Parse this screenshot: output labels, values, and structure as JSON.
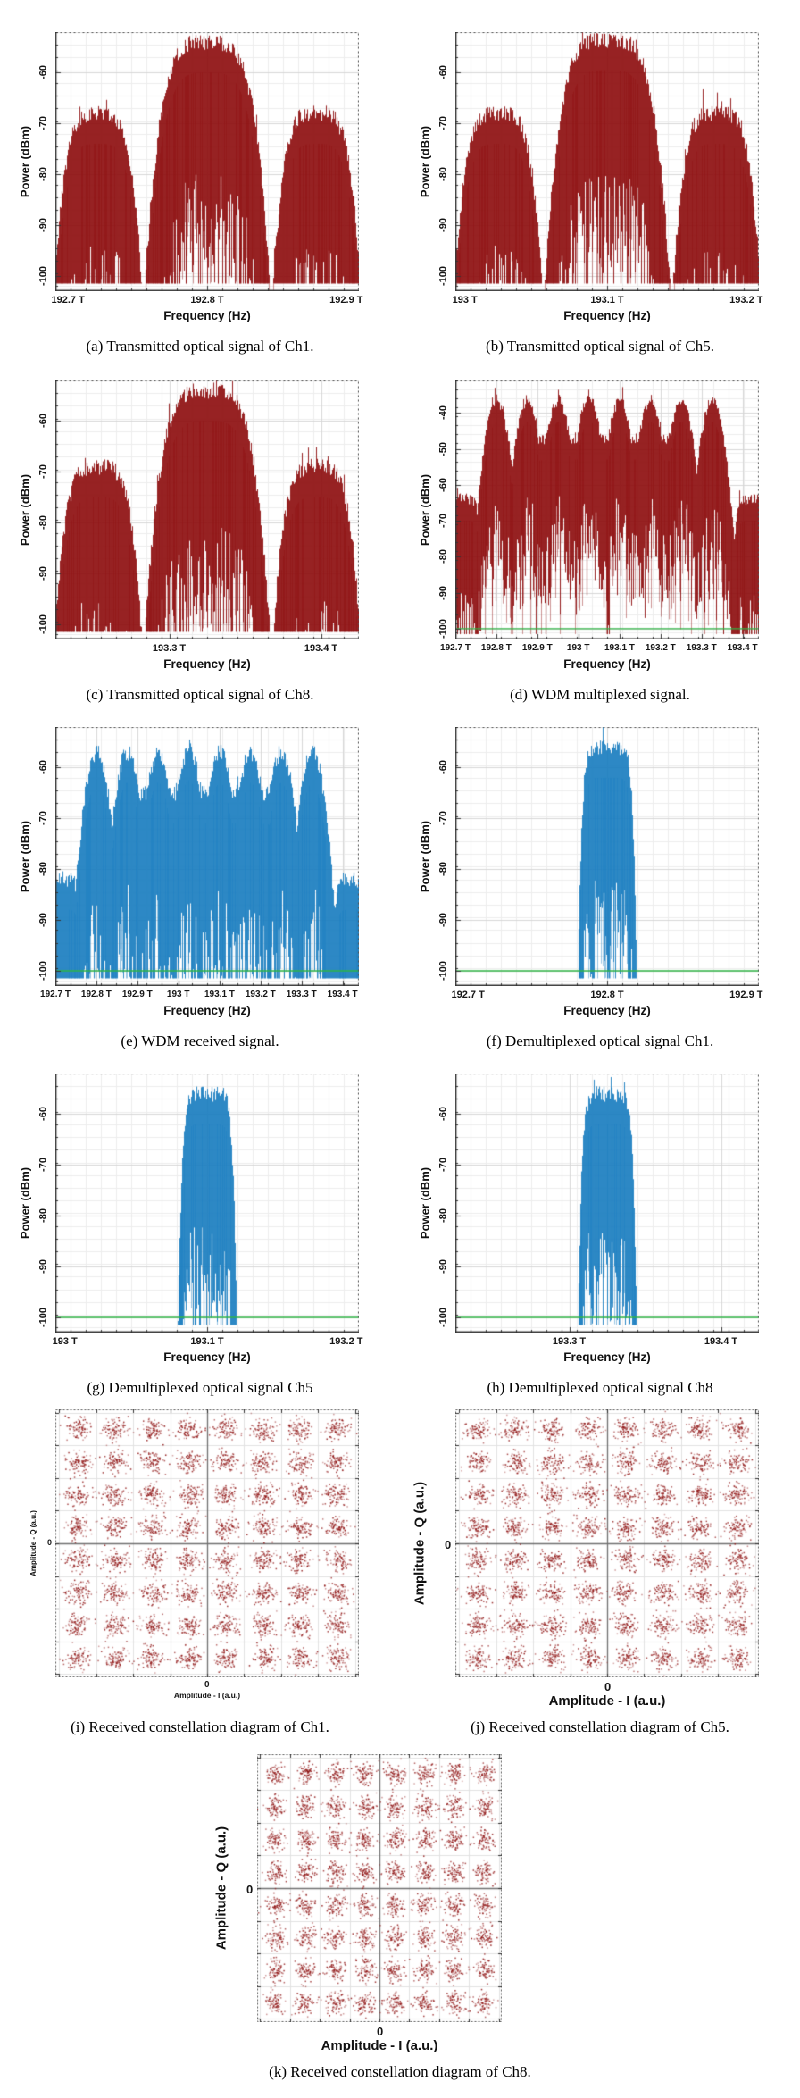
{
  "figure_title": "",
  "colors": {
    "transmit_spectrum": "#8e0f10",
    "received_spectrum": "#1b7ec0",
    "marker_line_green": "#2eb445",
    "constellation_dot": "#8f1414",
    "axis": "#3a3a3a",
    "grid_major": "#d7d7d7",
    "grid_minor": "#ededed"
  },
  "chart_data": [
    {
      "id": "a",
      "type": "area",
      "kind": "spectrum",
      "caption": "(a) Transmitted optical signal of Ch1.",
      "xlabel": "Frequency (Hz)",
      "ylabel": "Power (dBm)",
      "xlim_thz": [
        192.7,
        192.9
      ],
      "ylim_dbm": [
        -103,
        -52
      ],
      "yticks": [
        -60,
        -70,
        -80,
        -90,
        -100
      ],
      "xticks": [
        {
          "label": "192.7 T",
          "pos": 0
        },
        {
          "label": "192.8 T",
          "pos": 0.5
        },
        {
          "label": "192.9 T",
          "pos": 1
        }
      ],
      "color": "#8e0f10",
      "green_marker_dbm": null,
      "lobes": [
        {
          "center": 0.5,
          "halfwidth": 0.21,
          "peak_dbm": -54,
          "order": 4,
          "drop": 52
        },
        {
          "center": 0.14,
          "halfwidth": 0.16,
          "peak_dbm": -68,
          "order": 4,
          "drop": 52
        },
        {
          "center": 0.86,
          "halfwidth": 0.16,
          "peak_dbm": -68,
          "order": 4,
          "drop": 52
        }
      ],
      "seed": 11
    },
    {
      "id": "b",
      "type": "area",
      "kind": "spectrum",
      "caption": "(b) Transmitted optical signal of Ch5.",
      "xlabel": "Frequency (Hz)",
      "ylabel": "Power (dBm)",
      "xlim_thz": [
        193.0,
        193.2
      ],
      "ylim_dbm": [
        -103,
        -52
      ],
      "yticks": [
        -60,
        -70,
        -80,
        -90,
        -100
      ],
      "xticks": [
        {
          "label": "193 T",
          "pos": 0
        },
        {
          "label": "193.1 T",
          "pos": 0.5
        },
        {
          "label": "193.2 T",
          "pos": 1
        }
      ],
      "color": "#8e0f10",
      "green_marker_dbm": null,
      "lobes": [
        {
          "center": 0.5,
          "halfwidth": 0.21,
          "peak_dbm": -53.5,
          "order": 4,
          "drop": 52
        },
        {
          "center": 0.14,
          "halfwidth": 0.16,
          "peak_dbm": -68,
          "order": 4,
          "drop": 52
        },
        {
          "center": 0.86,
          "halfwidth": 0.16,
          "peak_dbm": -68,
          "order": 4,
          "drop": 52
        }
      ],
      "seed": 22
    },
    {
      "id": "c",
      "type": "area",
      "kind": "spectrum",
      "caption": "(c) Transmitted optical signal of Ch8.",
      "xlabel": "Frequency (Hz)",
      "ylabel": "Power (dBm)",
      "xlim_thz": [
        193.225,
        193.425
      ],
      "ylim_dbm": [
        -103,
        -52
      ],
      "yticks": [
        -60,
        -70,
        -80,
        -90,
        -100
      ],
      "xticks": [
        {
          "label": "193.3 T",
          "pos": 0.375
        },
        {
          "label": "193.4 T",
          "pos": 0.875
        }
      ],
      "color": "#8e0f10",
      "green_marker_dbm": null,
      "lobes": [
        {
          "center": 0.5,
          "halfwidth": 0.21,
          "peak_dbm": -54,
          "order": 4,
          "drop": 52
        },
        {
          "center": 0.14,
          "halfwidth": 0.16,
          "peak_dbm": -69,
          "order": 4,
          "drop": 52
        },
        {
          "center": 0.86,
          "halfwidth": 0.16,
          "peak_dbm": -69,
          "order": 4,
          "drop": 52
        }
      ],
      "seed": 33
    },
    {
      "id": "d",
      "type": "area",
      "kind": "spectrum",
      "caption": "(d) WDM multiplexed signal.",
      "xlabel": "Frequency (Hz)",
      "ylabel": "Power (dBm)",
      "xlim_thz": [
        192.7,
        193.44
      ],
      "ylim_dbm": [
        -103,
        -31
      ],
      "yticks": [
        -40,
        -50,
        -60,
        -70,
        -80,
        -90,
        -100
      ],
      "xticks": [
        {
          "label": "192.7 T",
          "pos": 0
        },
        {
          "label": "192.8 T",
          "pos": 0.135
        },
        {
          "label": "192.9 T",
          "pos": 0.27
        },
        {
          "label": "193 T",
          "pos": 0.405
        },
        {
          "label": "193.1 T",
          "pos": 0.541
        },
        {
          "label": "193.2 T",
          "pos": 0.676
        },
        {
          "label": "193.3 T",
          "pos": 0.811
        },
        {
          "label": "193.4 T",
          "pos": 0.946
        }
      ],
      "color": "#8e0f10",
      "green_marker_dbm": -100,
      "channel_centers_thz": [
        192.8,
        192.875,
        192.95,
        193.025,
        193.1,
        193.175,
        193.25,
        193.325
      ],
      "lobes": [
        {
          "center": 0.135,
          "halfwidth": 0.046,
          "peak_dbm": -36.5,
          "order": 2,
          "drop": 16
        },
        {
          "center": 0.236,
          "halfwidth": 0.046,
          "peak_dbm": -36.5,
          "order": 2,
          "drop": 16
        },
        {
          "center": 0.338,
          "halfwidth": 0.046,
          "peak_dbm": -36.5,
          "order": 2,
          "drop": 16
        },
        {
          "center": 0.439,
          "halfwidth": 0.046,
          "peak_dbm": -36,
          "order": 2,
          "drop": 16
        },
        {
          "center": 0.541,
          "halfwidth": 0.046,
          "peak_dbm": -36.5,
          "order": 2,
          "drop": 16
        },
        {
          "center": 0.642,
          "halfwidth": 0.046,
          "peak_dbm": -36.5,
          "order": 2,
          "drop": 16
        },
        {
          "center": 0.743,
          "halfwidth": 0.046,
          "peak_dbm": -36.5,
          "order": 2,
          "drop": 16
        },
        {
          "center": 0.845,
          "halfwidth": 0.046,
          "peak_dbm": -36.5,
          "order": 2,
          "drop": 16
        },
        {
          "center": 0.49,
          "halfwidth": 0.365,
          "peak_dbm": -47,
          "order": 10,
          "drop": 60
        },
        {
          "center": 0.025,
          "halfwidth": 0.075,
          "peak_dbm": -64,
          "order": 6,
          "drop": 60
        },
        {
          "center": 0.975,
          "halfwidth": 0.075,
          "peak_dbm": -64,
          "order": 6,
          "drop": 60
        }
      ],
      "seed": 44
    },
    {
      "id": "e",
      "type": "area",
      "kind": "spectrum",
      "caption": "(e) WDM received signal.",
      "xlabel": "Frequency (Hz)",
      "ylabel": "Power (dBm)",
      "xlim_thz": [
        192.7,
        193.44
      ],
      "ylim_dbm": [
        -103,
        -52
      ],
      "yticks": [
        -60,
        -70,
        -80,
        -90,
        -100
      ],
      "xticks": [
        {
          "label": "192.7 T",
          "pos": 0
        },
        {
          "label": "192.8 T",
          "pos": 0.135
        },
        {
          "label": "192.9 T",
          "pos": 0.27
        },
        {
          "label": "193 T",
          "pos": 0.405
        },
        {
          "label": "193.1 T",
          "pos": 0.541
        },
        {
          "label": "193.2 T",
          "pos": 0.676
        },
        {
          "label": "193.3 T",
          "pos": 0.811
        },
        {
          "label": "193.4 T",
          "pos": 0.946
        }
      ],
      "color": "#1b7ec0",
      "green_marker_dbm": -100,
      "channel_centers_thz": [
        192.8,
        192.875,
        192.95,
        193.025,
        193.1,
        193.175,
        193.25,
        193.325
      ],
      "lobes": [
        {
          "center": 0.135,
          "halfwidth": 0.046,
          "peak_dbm": -57,
          "order": 2,
          "drop": 12
        },
        {
          "center": 0.236,
          "halfwidth": 0.046,
          "peak_dbm": -57,
          "order": 2,
          "drop": 12
        },
        {
          "center": 0.338,
          "halfwidth": 0.046,
          "peak_dbm": -57,
          "order": 2,
          "drop": 12
        },
        {
          "center": 0.439,
          "halfwidth": 0.046,
          "peak_dbm": -56.5,
          "order": 2,
          "drop": 12
        },
        {
          "center": 0.541,
          "halfwidth": 0.046,
          "peak_dbm": -57,
          "order": 2,
          "drop": 12
        },
        {
          "center": 0.642,
          "halfwidth": 0.046,
          "peak_dbm": -57,
          "order": 2,
          "drop": 12
        },
        {
          "center": 0.743,
          "halfwidth": 0.046,
          "peak_dbm": -57,
          "order": 2,
          "drop": 12
        },
        {
          "center": 0.845,
          "halfwidth": 0.046,
          "peak_dbm": -57,
          "order": 2,
          "drop": 12
        },
        {
          "center": 0.49,
          "halfwidth": 0.365,
          "peak_dbm": -65,
          "order": 10,
          "drop": 60
        },
        {
          "center": 0.025,
          "halfwidth": 0.075,
          "peak_dbm": -82,
          "order": 6,
          "drop": 40
        },
        {
          "center": 0.975,
          "halfwidth": 0.075,
          "peak_dbm": -82,
          "order": 6,
          "drop": 40
        }
      ],
      "seed": 55
    },
    {
      "id": "f",
      "type": "area",
      "kind": "spectrum",
      "caption": "(f) Demultiplexed optical signal Ch1.",
      "xlabel": "Frequency (Hz)",
      "ylabel": "Power (dBm)",
      "xlim_thz": [
        192.7,
        192.9
      ],
      "ylim_dbm": [
        -103,
        -52
      ],
      "yticks": [
        -60,
        -70,
        -80,
        -90,
        -100
      ],
      "xticks": [
        {
          "label": "192.7 T",
          "pos": 0
        },
        {
          "label": "192.8 T",
          "pos": 0.5
        },
        {
          "label": "192.9 T",
          "pos": 1
        }
      ],
      "color": "#1b7ec0",
      "green_marker_dbm": -100,
      "lobes": [
        {
          "center": 0.5,
          "halfwidth": 0.1,
          "peak_dbm": -56,
          "order": 8,
          "drop": 60
        }
      ],
      "seed": 66
    },
    {
      "id": "g",
      "type": "area",
      "kind": "spectrum",
      "caption": "(g) Demultiplexed optical signal Ch5",
      "xlabel": "Frequency (Hz)",
      "ylabel": "Power (dBm)",
      "xlim_thz": [
        193.0,
        193.2
      ],
      "ylim_dbm": [
        -103,
        -52
      ],
      "yticks": [
        -60,
        -70,
        -80,
        -90,
        -100
      ],
      "xticks": [
        {
          "label": "193 T",
          "pos": 0
        },
        {
          "label": "193.1 T",
          "pos": 0.5
        },
        {
          "label": "193.2 T",
          "pos": 1
        }
      ],
      "color": "#1b7ec0",
      "green_marker_dbm": -100,
      "lobes": [
        {
          "center": 0.5,
          "halfwidth": 0.1,
          "peak_dbm": -56,
          "order": 8,
          "drop": 60
        }
      ],
      "seed": 77
    },
    {
      "id": "h",
      "type": "area",
      "kind": "spectrum",
      "caption": "(h) Demultiplexed optical signal Ch8",
      "xlabel": "Frequency (Hz)",
      "ylabel": "Power (dBm)",
      "xlim_thz": [
        193.225,
        193.425
      ],
      "ylim_dbm": [
        -103,
        -52
      ],
      "yticks": [
        -60,
        -70,
        -80,
        -90,
        -100
      ],
      "xticks": [
        {
          "label": "193.3 T",
          "pos": 0.375
        },
        {
          "label": "193.4 T",
          "pos": 0.875
        }
      ],
      "color": "#1b7ec0",
      "green_marker_dbm": -100,
      "lobes": [
        {
          "center": 0.5,
          "halfwidth": 0.1,
          "peak_dbm": -56,
          "order": 8,
          "drop": 60
        }
      ],
      "seed": 88
    },
    {
      "id": "i",
      "type": "scatter",
      "kind": "constellation",
      "caption": "(i) Received constellation diagram of Ch1.",
      "xlabel": "Amplitude - I (a.u.)",
      "ylabel": "Amplitude - Q (a.u.)",
      "x_zero_label": "0",
      "y_zero_label": "0",
      "modulation": "64-QAM",
      "i_levels": [
        -7,
        -5,
        -3,
        -1,
        1,
        3,
        5,
        7
      ],
      "q_levels": [
        -7,
        -5,
        -3,
        -1,
        1,
        3,
        5,
        7
      ],
      "points_per_cluster": 90,
      "cluster_sigma": 0.34,
      "axis_range": [
        -8.2,
        8.2
      ],
      "color": "#8f1414",
      "label_style": "small",
      "seed": 99
    },
    {
      "id": "j",
      "type": "scatter",
      "kind": "constellation",
      "caption": "(j) Received constellation diagram of Ch5.",
      "xlabel": "Amplitude - I (a.u.)",
      "ylabel": "Amplitude - Q (a.u.)",
      "x_zero_label": "0",
      "y_zero_label": "0",
      "modulation": "64-QAM",
      "i_levels": [
        -7,
        -5,
        -3,
        -1,
        1,
        3,
        5,
        7
      ],
      "q_levels": [
        -7,
        -5,
        -3,
        -1,
        1,
        3,
        5,
        7
      ],
      "points_per_cluster": 90,
      "cluster_sigma": 0.34,
      "axis_range": [
        -8.2,
        8.2
      ],
      "color": "#8f1414",
      "label_style": "large",
      "seed": 110
    },
    {
      "id": "k",
      "type": "scatter",
      "kind": "constellation",
      "caption": "(k) Received constellation diagram of Ch8.",
      "xlabel": "Amplitude - I (a.u.)",
      "ylabel": "Amplitude - Q (a.u.)",
      "x_zero_label": "0",
      "y_zero_label": "0",
      "modulation": "64-QAM",
      "i_levels": [
        -7,
        -5,
        -3,
        -1,
        1,
        3,
        5,
        7
      ],
      "q_levels": [
        -7,
        -5,
        -3,
        -1,
        1,
        3,
        5,
        7
      ],
      "points_per_cluster": 80,
      "cluster_sigma": 0.34,
      "axis_range": [
        -8.2,
        8.2
      ],
      "color": "#8f1414",
      "label_style": "large",
      "seed": 121
    }
  ]
}
